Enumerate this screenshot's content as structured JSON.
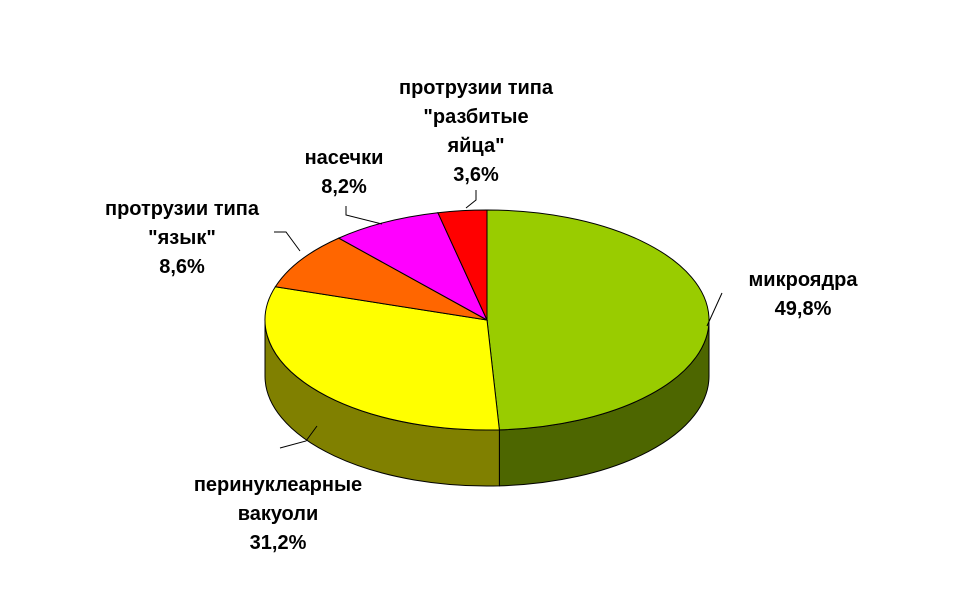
{
  "chart_data": {
    "type": "pie",
    "title": "",
    "slices": [
      {
        "label_lines": [
          "микроядра"
        ],
        "value_text": "49,8%",
        "value": 49.8,
        "color": "#99CC00",
        "side_color": "#4D6600"
      },
      {
        "label_lines": [
          "перинуклеарные",
          "вакуоли"
        ],
        "value_text": "31,2%",
        "value": 31.2,
        "color": "#FFFF00",
        "side_color": "#808000"
      },
      {
        "label_lines": [
          "протрузии типа",
          "\"язык\""
        ],
        "value_text": "8,6%",
        "value": 8.6,
        "color": "#FF6600",
        "side_color": "#803300"
      },
      {
        "label_lines": [
          "насечки"
        ],
        "value_text": "8,2%",
        "value": 8.2,
        "color": "#FF00FF",
        "side_color": "#800080"
      },
      {
        "label_lines": [
          "протрузии типа",
          "\"разбитые",
          "яйца\""
        ],
        "value_text": "3,6%",
        "value": 3.6,
        "color": "#FF0000",
        "side_color": "#800000"
      }
    ]
  }
}
